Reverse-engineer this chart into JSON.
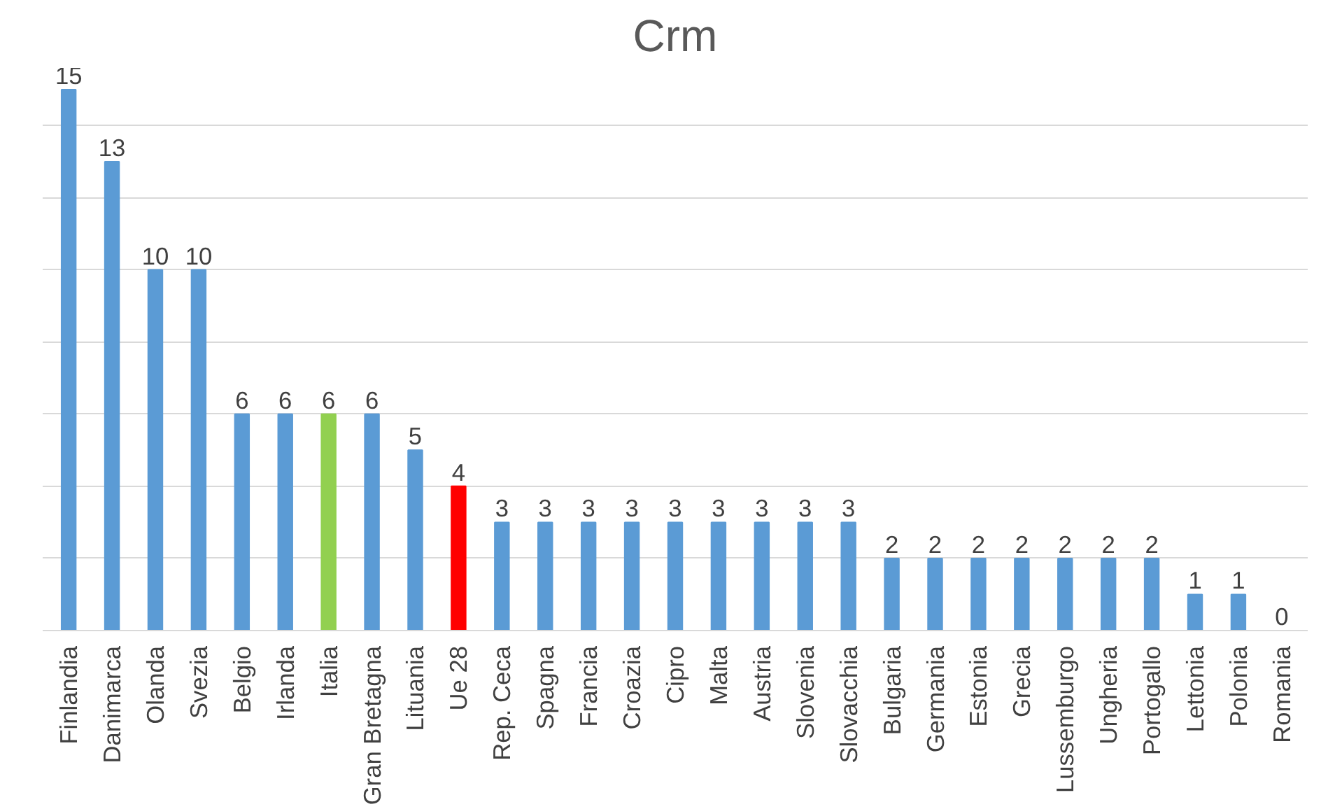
{
  "chart_data": {
    "type": "bar",
    "title": "Crm",
    "categories": [
      "Finlandia",
      "Danimarca",
      "Olanda",
      "Svezia",
      "Belgio",
      "Irlanda",
      "Italia",
      "Gran Bretagna",
      "Lituania",
      "Ue 28",
      "Rep. Ceca",
      "Spagna",
      "Francia",
      "Croazia",
      "Cipro",
      "Malta",
      "Austria",
      "Slovenia",
      "Slovacchia",
      "Bulgaria",
      "Germania",
      "Estonia",
      "Grecia",
      "Lussemburgo",
      "Ungheria",
      "Portogallo",
      "Lettonia",
      "Polonia",
      "Romania"
    ],
    "values": [
      15,
      13,
      10,
      10,
      6,
      6,
      6,
      6,
      5,
      4,
      3,
      3,
      3,
      3,
      3,
      3,
      3,
      3,
      3,
      2,
      2,
      2,
      2,
      2,
      2,
      2,
      1,
      1,
      0
    ],
    "colors": [
      "#5b9bd5",
      "#5b9bd5",
      "#5b9bd5",
      "#5b9bd5",
      "#5b9bd5",
      "#5b9bd5",
      "#92d050",
      "#5b9bd5",
      "#5b9bd5",
      "#ff0000",
      "#5b9bd5",
      "#5b9bd5",
      "#5b9bd5",
      "#5b9bd5",
      "#5b9bd5",
      "#5b9bd5",
      "#5b9bd5",
      "#5b9bd5",
      "#5b9bd5",
      "#5b9bd5",
      "#5b9bd5",
      "#5b9bd5",
      "#5b9bd5",
      "#5b9bd5",
      "#5b9bd5",
      "#5b9bd5",
      "#5b9bd5",
      "#5b9bd5",
      "#5b9bd5"
    ],
    "yticks": [
      {
        "value": 0,
        "label": null
      },
      {
        "value": 2,
        "label": null
      },
      {
        "value": 4,
        "label": null
      },
      {
        "value": 6,
        "label": null
      },
      {
        "value": 8,
        "label": null
      },
      {
        "value": 10,
        "label": null
      },
      {
        "value": 12,
        "label": null
      },
      {
        "value": 14,
        "label": null
      }
    ],
    "tick_labels": "x",
    "grid": "y",
    "data_labels": true
  }
}
